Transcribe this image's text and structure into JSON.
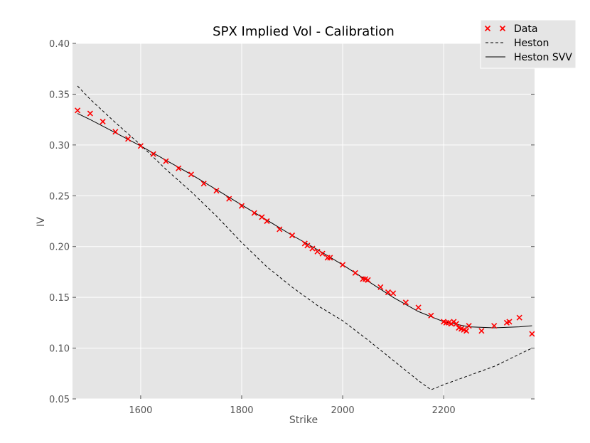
{
  "chart_data": {
    "type": "scatter",
    "title": "SPX Implied Vol - Calibration",
    "xlabel": "Strike",
    "ylabel": "IV",
    "xlim": [
      1465,
      2380
    ],
    "ylim": [
      0.05,
      0.4
    ],
    "xticks": [
      1600,
      1800,
      2000,
      2200
    ],
    "xtick_labels": [
      "1600",
      "1800",
      "2000",
      "2200"
    ],
    "yticks": [
      0.05,
      0.1,
      0.15,
      0.2,
      0.25,
      0.3,
      0.35,
      0.4
    ],
    "ytick_labels": [
      "0.05",
      "0.10",
      "0.15",
      "0.20",
      "0.25",
      "0.30",
      "0.35",
      "0.40"
    ],
    "grid": true,
    "legend_position": "top-right",
    "series": [
      {
        "name": "Data",
        "kind": "markers",
        "marker": "x",
        "color": "#ff0000",
        "x": [
          1475,
          1500,
          1525,
          1550,
          1575,
          1600,
          1625,
          1650,
          1675,
          1700,
          1725,
          1750,
          1775,
          1800,
          1825,
          1840,
          1850,
          1875,
          1900,
          1925,
          1930,
          1940,
          1950,
          1960,
          1970,
          1975,
          2000,
          2025,
          2040,
          2045,
          2050,
          2075,
          2090,
          2100,
          2125,
          2150,
          2175,
          2200,
          2205,
          2210,
          2215,
          2220,
          2225,
          2230,
          2235,
          2240,
          2245,
          2250,
          2275,
          2300,
          2325,
          2330,
          2350,
          2375
        ],
        "y": [
          0.334,
          0.331,
          0.323,
          0.313,
          0.306,
          0.299,
          0.291,
          0.284,
          0.277,
          0.271,
          0.262,
          0.255,
          0.247,
          0.24,
          0.233,
          0.229,
          0.225,
          0.217,
          0.211,
          0.203,
          0.201,
          0.198,
          0.195,
          0.193,
          0.189,
          0.189,
          0.182,
          0.174,
          0.168,
          0.168,
          0.167,
          0.16,
          0.155,
          0.154,
          0.145,
          0.14,
          0.132,
          0.126,
          0.125,
          0.125,
          0.124,
          0.126,
          0.124,
          0.12,
          0.119,
          0.118,
          0.117,
          0.122,
          0.117,
          0.122,
          0.125,
          0.126,
          0.13,
          0.114
        ]
      },
      {
        "name": "Heston",
        "kind": "line",
        "dash": "dashed",
        "color": "#000000",
        "x": [
          1475,
          1500,
          1550,
          1600,
          1650,
          1700,
          1750,
          1800,
          1850,
          1900,
          1950,
          2000,
          2050,
          2100,
          2150,
          2175,
          2200,
          2250,
          2300,
          2350,
          2375
        ],
        "y": [
          0.358,
          0.345,
          0.322,
          0.3,
          0.276,
          0.254,
          0.23,
          0.204,
          0.18,
          0.16,
          0.142,
          0.127,
          0.108,
          0.088,
          0.068,
          0.059,
          0.064,
          0.073,
          0.082,
          0.094,
          0.1
        ]
      },
      {
        "name": "Heston SVV",
        "kind": "line",
        "dash": "solid",
        "color": "#000000",
        "x": [
          1475,
          1500,
          1550,
          1600,
          1650,
          1700,
          1750,
          1800,
          1850,
          1900,
          1950,
          2000,
          2050,
          2100,
          2150,
          2200,
          2250,
          2300,
          2350,
          2375
        ],
        "y": [
          0.331,
          0.325,
          0.312,
          0.299,
          0.285,
          0.271,
          0.256,
          0.241,
          0.226,
          0.211,
          0.197,
          0.182,
          0.166,
          0.15,
          0.136,
          0.126,
          0.121,
          0.12,
          0.121,
          0.122
        ]
      }
    ]
  }
}
